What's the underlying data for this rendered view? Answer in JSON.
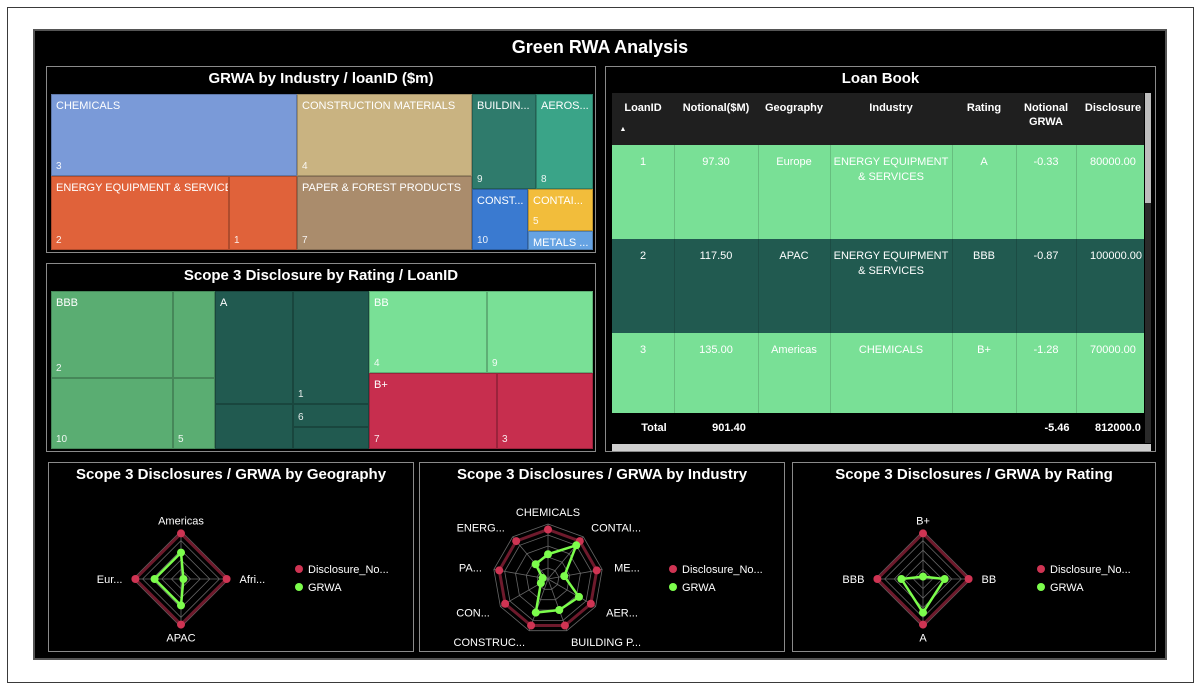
{
  "dashboard": {
    "title": "Green RWA Analysis"
  },
  "colors": {
    "pink": "#cf3453",
    "green": "#7cfd4c",
    "maroon": "#6e1a2c"
  },
  "treemap_industry": {
    "title": "GRWA by Industry / loanID ($m)",
    "cells": [
      {
        "label": "CHEMICALS",
        "num": "3",
        "color": "#7a9ad8"
      },
      {
        "label": "CONSTRUCTION MATERIALS",
        "num": "4",
        "color": "#c9b381"
      },
      {
        "label": "BUILDIN...",
        "num": "9",
        "color": "#2f7b6c"
      },
      {
        "label": "AEROS...",
        "num": "8",
        "color": "#3aa488"
      },
      {
        "label": "ENERGY EQUIPMENT & SERVICES",
        "num": "2",
        "color": "#e0623a"
      },
      {
        "label": "",
        "num": "1",
        "color": "#e0623a"
      },
      {
        "label": "PAPER & FOREST PRODUCTS",
        "num": "7",
        "color": "#aa8c6c"
      },
      {
        "label": "CONST...",
        "num": "10",
        "color": "#3a7ad0"
      },
      {
        "label": "CONTAI...",
        "num": "5",
        "color": "#f2bd3b"
      },
      {
        "label": "METALS ...",
        "num": "",
        "color": "#66a3e3"
      }
    ]
  },
  "treemap_rating": {
    "title": "Scope 3 Disclosure by Rating / LoanID",
    "cells": [
      {
        "label": "BBB",
        "num": "2",
        "color": "#5aad72"
      },
      {
        "label": "",
        "num": "",
        "color": "#5aad72"
      },
      {
        "label": "",
        "num": "10",
        "color": "#5aad72"
      },
      {
        "label": "",
        "num": "5",
        "color": "#5aad72"
      },
      {
        "label": "A",
        "num": "",
        "color": "#215a50"
      },
      {
        "label": "",
        "num": "1",
        "color": "#215a50"
      },
      {
        "label": "",
        "num": "",
        "color": "#215a50"
      },
      {
        "label": "",
        "num": "6",
        "color": "#215a50"
      },
      {
        "label": "",
        "num": "",
        "color": "#215a50"
      },
      {
        "label": "BB",
        "num": "4",
        "color": "#79e096"
      },
      {
        "label": "",
        "num": "9",
        "color": "#79e096"
      },
      {
        "label": "B+",
        "num": "7",
        "color": "#c72e4e"
      },
      {
        "label": "",
        "num": "3",
        "color": "#c72e4e"
      }
    ]
  },
  "loanbook": {
    "title": "Loan Book",
    "columns": [
      "LoanID",
      "Notional($M)",
      "Geography",
      "Industry",
      "Rating",
      "Notional GRWA",
      "Disclosure"
    ],
    "sort_icon": "▲",
    "rows": [
      {
        "id": "1",
        "notional": "97.30",
        "geo": "Europe",
        "industry": "ENERGY EQUIPMENT & SERVICES",
        "rating": "A",
        "grwa": "-0.33",
        "disc": "80000.00",
        "color": "#79e096"
      },
      {
        "id": "2",
        "notional": "117.50",
        "geo": "APAC",
        "industry": "ENERGY EQUIPMENT & SERVICES",
        "rating": "BBB",
        "grwa": "-0.87",
        "disc": "100000.00",
        "color": "#215a50"
      },
      {
        "id": "3",
        "notional": "135.00",
        "geo": "Americas",
        "industry": "CHEMICALS",
        "rating": "B+",
        "grwa": "-1.28",
        "disc": "70000.00",
        "color": "#79e096"
      }
    ],
    "total": {
      "label": "Total",
      "notional": "901.40",
      "grwa": "-5.46",
      "disc": "812000.0"
    }
  },
  "radar_legend": [
    "Disclosure_No...",
    "GRWA"
  ],
  "radar_geo": {
    "title": "Scope 3 Disclosures / GRWA by Geography",
    "axes": [
      "Americas",
      "Afri...",
      "APAC",
      "Eur..."
    ],
    "disclosure": [
      0.95,
      0.95,
      0.95,
      0.95
    ],
    "grwa": [
      0.55,
      0.05,
      0.55,
      0.55
    ]
  },
  "radar_industry": {
    "title": "Scope 3 Disclosures / GRWA by Industry",
    "axes": [
      "CHEMICALS",
      "CONTAI...",
      "ME...",
      "AER...",
      "BUILDING P...",
      "CONSTRUC...",
      "CON...",
      "PA...",
      "ENERG..."
    ],
    "disclosure": [
      0.9,
      0.9,
      0.9,
      0.9,
      0.9,
      0.9,
      0.9,
      0.9,
      0.9
    ],
    "grwa": [
      0.45,
      0.8,
      0.3,
      0.65,
      0.6,
      0.65,
      0.15,
      0.1,
      0.35
    ]
  },
  "radar_rating": {
    "title": "Scope 3 Disclosures / GRWA by Rating",
    "axes": [
      "B+",
      "BB",
      "A",
      "BBB"
    ],
    "disclosure": [
      0.95,
      0.95,
      0.95,
      0.95
    ],
    "grwa": [
      0.05,
      0.45,
      0.7,
      0.45
    ]
  }
}
